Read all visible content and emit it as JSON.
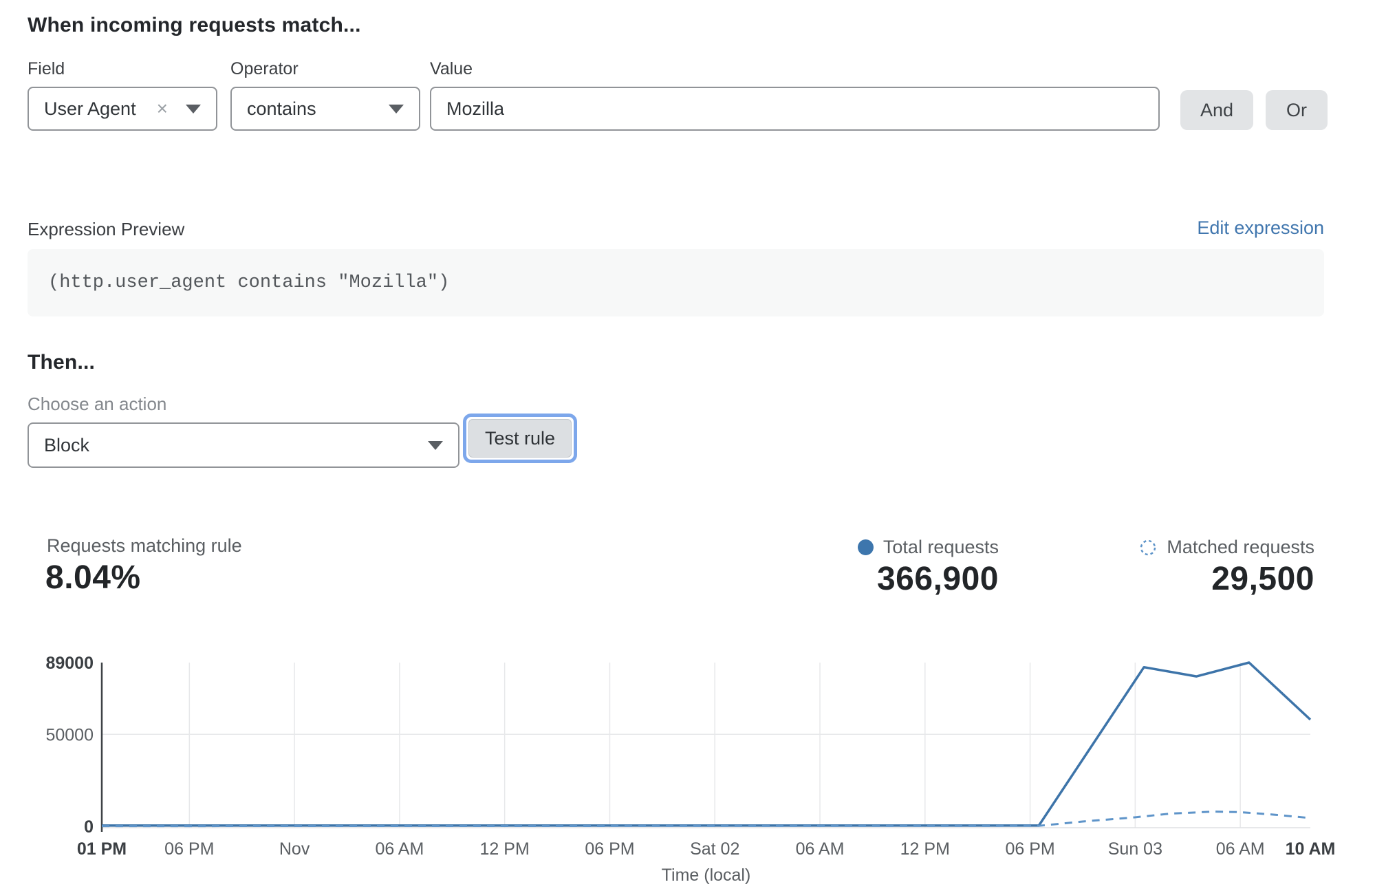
{
  "match_section": {
    "title": "When incoming requests match...",
    "field_label": "Field",
    "operator_label": "Operator",
    "value_label": "Value",
    "field_value": "User Agent",
    "operator_value": "contains",
    "value_text": "Mozilla",
    "and_label": "And",
    "or_label": "Or"
  },
  "expression_preview": {
    "label": "Expression Preview",
    "edit_link": "Edit expression",
    "code": "(http.user_agent contains \"Mozilla\")"
  },
  "then_section": {
    "title": "Then...",
    "action_label": "Choose an action",
    "action_value": "Block",
    "test_button_label": "Test rule"
  },
  "stats": {
    "matching_rule_label": "Requests matching rule",
    "matching_rule_value": "8.04%",
    "total_label": "Total requests",
    "total_value": "366,900",
    "matched_label": "Matched requests",
    "matched_value": "29,500"
  },
  "icons": {
    "clear_glyph": "×"
  },
  "colors": {
    "line_solid": "#3d74a9",
    "line_dashed": "#5e94c9",
    "legend_dot": "#3d76ad",
    "link_blue": "#4076ae",
    "focus_ring": "#7da7eb",
    "grid": "#e7e8ea",
    "baseline": "#dfe1e3",
    "axis": "#3f4347",
    "tick_text": "#5a5e62",
    "tick_text_bold": "#3b3f43"
  },
  "chart_data": {
    "type": "line",
    "title": "",
    "xlabel": "Time (local)",
    "ylabel": "",
    "ylim": [
      0,
      89000
    ],
    "x_range_hours": [
      0,
      69
    ],
    "grid": true,
    "legend_position": "top-right",
    "yticks": [
      {
        "value": 0,
        "label": "0",
        "bold": true
      },
      {
        "value": 50000,
        "label": "50000",
        "bold": false
      },
      {
        "value": 89000,
        "label": "89000",
        "bold": true
      }
    ],
    "xticks": [
      {
        "hour": 0,
        "label": "01 PM",
        "bold": true
      },
      {
        "hour": 5,
        "label": "06 PM",
        "bold": false
      },
      {
        "hour": 11,
        "label": "Nov",
        "bold": false
      },
      {
        "hour": 17,
        "label": "06 AM",
        "bold": false
      },
      {
        "hour": 23,
        "label": "12 PM",
        "bold": false
      },
      {
        "hour": 29,
        "label": "06 PM",
        "bold": false
      },
      {
        "hour": 35,
        "label": "Sat 02",
        "bold": false
      },
      {
        "hour": 41,
        "label": "06 AM",
        "bold": false
      },
      {
        "hour": 47,
        "label": "12 PM",
        "bold": false
      },
      {
        "hour": 53,
        "label": "06 PM",
        "bold": false
      },
      {
        "hour": 59,
        "label": "Sun 03",
        "bold": false
      },
      {
        "hour": 65,
        "label": "06 AM",
        "bold": false
      },
      {
        "hour": 69,
        "label": "10 AM",
        "bold": true
      }
    ],
    "series": [
      {
        "name": "Total requests",
        "style": "solid",
        "color": "#3d74a9",
        "points": [
          [
            0,
            400
          ],
          [
            53.5,
            400
          ],
          [
            59.5,
            86500
          ],
          [
            62.5,
            81500
          ],
          [
            65.5,
            89000
          ],
          [
            69,
            58000
          ]
        ]
      },
      {
        "name": "Matched requests",
        "style": "dashed",
        "color": "#5e94c9",
        "points": [
          [
            0,
            150
          ],
          [
            53.5,
            250
          ],
          [
            56,
            2600
          ],
          [
            59,
            4900
          ],
          [
            61,
            6900
          ],
          [
            63.5,
            8000
          ],
          [
            65,
            7700
          ],
          [
            67,
            6300
          ],
          [
            69,
            4500
          ]
        ]
      }
    ]
  }
}
